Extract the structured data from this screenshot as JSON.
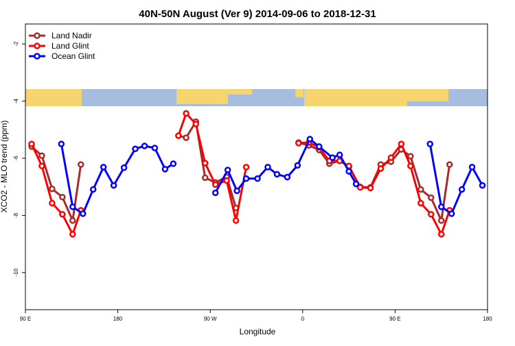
{
  "chart_data": {
    "type": "line",
    "title": "40N-50N August (Ver 9)   2014-09-06 to 2018-12-31",
    "x_label": "Longitude",
    "y_label": "XCO2 - MLO trend (ppm)",
    "xlim": [
      90,
      540
    ],
    "ylim": [
      -11.3,
      -1.3
    ],
    "xticks": [
      {
        "value": 90,
        "label": "90 E"
      },
      {
        "value": 180,
        "label": "180"
      },
      {
        "value": 270,
        "label": "90 W"
      },
      {
        "value": 360,
        "label": "0"
      },
      {
        "value": 450,
        "label": "90 E"
      },
      {
        "value": 540,
        "label": "180"
      }
    ],
    "yticks": [
      -10,
      -8,
      -6,
      -4,
      -2
    ],
    "legend": "top-left",
    "series": [
      {
        "name": "Land Nadir",
        "color": "#a52a2a",
        "x": [
          96,
          106,
          116,
          126,
          136,
          144,
          null,
          239,
          246.5,
          256,
          265,
          275,
          286,
          295,
          null,
          356,
          366,
          376,
          386,
          396,
          405,
          416,
          426,
          436,
          446,
          456,
          465,
          475,
          485,
          495,
          503
        ],
        "values": [
          -5.59,
          -5.91,
          -7.07,
          -7.36,
          -8.18,
          -6.22,
          null,
          -5.21,
          -5.28,
          -4.72,
          -6.68,
          -6.85,
          -6.65,
          -7.74,
          null,
          -5.45,
          -5.55,
          -5.71,
          -6.19,
          -6.09,
          -6.29,
          -7.0,
          -7.02,
          -6.22,
          -6.12,
          -5.69,
          -5.93,
          -7.09,
          -7.38,
          -8.18,
          -6.22
        ]
      },
      {
        "name": "Land Glint",
        "color": "#ff0000",
        "x": [
          96,
          106,
          116,
          126,
          136,
          144,
          null,
          239,
          246.5,
          256,
          265,
          275,
          286,
          295,
          305,
          null,
          356,
          366,
          376,
          386,
          396,
          405,
          416,
          426,
          436,
          446,
          456,
          465,
          475,
          485,
          495,
          503
        ],
        "values": [
          -5.5,
          -6.27,
          -7.57,
          -7.96,
          -8.66,
          -7.82,
          null,
          -5.21,
          -4.43,
          -4.8,
          -6.17,
          -6.92,
          -6.78,
          -8.18,
          -6.31,
          null,
          -5.47,
          -5.45,
          -5.62,
          -6.09,
          -6.09,
          -6.27,
          -7.02,
          -7.04,
          -6.36,
          -5.98,
          -5.5,
          -6.27,
          -7.57,
          -7.96,
          -8.66,
          -7.82
        ]
      },
      {
        "name": "Ocean Glint",
        "color": "#0000ff",
        "x": [
          125,
          136,
          146,
          156,
          166,
          176,
          186,
          197,
          206,
          216,
          226,
          234,
          null,
          275,
          287,
          296,
          305,
          316,
          326,
          335,
          345,
          355,
          367,
          376,
          389,
          396,
          405,
          412,
          null,
          484,
          495,
          505,
          515,
          525,
          535
        ],
        "values": [
          -5.5,
          -7.7,
          -7.94,
          -7.09,
          -6.31,
          -6.95,
          -6.33,
          -5.67,
          -5.57,
          -5.64,
          -6.38,
          -6.19,
          null,
          -7.21,
          -6.41,
          -7.14,
          -6.71,
          -6.71,
          -6.31,
          -6.56,
          -6.66,
          -6.25,
          -5.33,
          -5.59,
          -5.98,
          -5.88,
          -6.46,
          -6.9,
          null,
          -5.5,
          -7.7,
          -7.94,
          -7.09,
          -6.31,
          -6.95
        ]
      }
    ]
  }
}
